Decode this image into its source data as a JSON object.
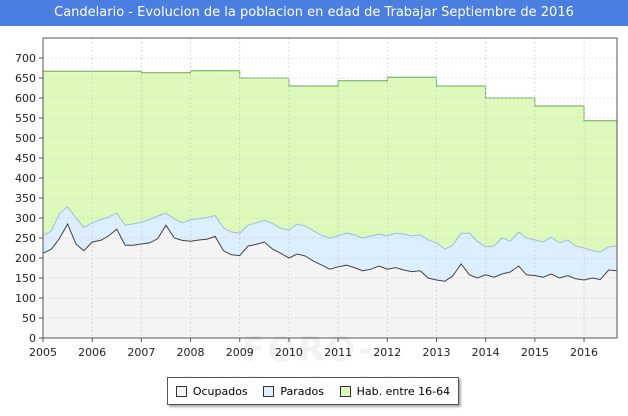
{
  "title": "Candelario - Evolucion de la poblacion en edad de Trabajar Septiembre de 2016",
  "watermark": "FORO-CIUDAD.COM",
  "chart_data": {
    "type": "area",
    "title": "Candelario - Evolucion de la poblacion en edad de Trabajar Septiembre de 2016",
    "xlabel": "",
    "ylabel": "",
    "xlim": [
      2005,
      2016.67
    ],
    "ylim": [
      0,
      750
    ],
    "y_ticks": [
      0,
      50,
      100,
      150,
      200,
      250,
      300,
      350,
      400,
      450,
      500,
      550,
      600,
      650,
      700
    ],
    "x_ticks": [
      "2005",
      "2006",
      "2007",
      "2008",
      "2009",
      "2010",
      "2011",
      "2012",
      "2013",
      "2014",
      "2015",
      "2016"
    ],
    "grid": true,
    "legend_position": "bottom",
    "colors": {
      "ocupados": "#f4f4f4",
      "parados": "#ddeeff",
      "hab": "#ddfaba",
      "hab_line": "#66aa55",
      "line": "#444444"
    },
    "series": [
      {
        "name": "Hab. entre 16-64",
        "type": "step",
        "x": [
          2005,
          2007,
          2008,
          2009,
          2010,
          2011,
          2012,
          2013,
          2014,
          2015,
          2016,
          2016.67
        ],
        "values": [
          667,
          663,
          668,
          650,
          630,
          643,
          652,
          630,
          600,
          580,
          543,
          543
        ]
      },
      {
        "name": "Parados",
        "x": [
          2005.0,
          2005.17,
          2005.33,
          2005.5,
          2005.67,
          2005.83,
          2006.0,
          2006.17,
          2006.33,
          2006.5,
          2006.67,
          2006.83,
          2007.0,
          2007.17,
          2007.33,
          2007.5,
          2007.67,
          2007.83,
          2008.0,
          2008.17,
          2008.33,
          2008.5,
          2008.67,
          2008.83,
          2009.0,
          2009.17,
          2009.33,
          2009.5,
          2009.67,
          2009.83,
          2010.0,
          2010.17,
          2010.33,
          2010.5,
          2010.67,
          2010.83,
          2011.0,
          2011.17,
          2011.33,
          2011.5,
          2011.67,
          2011.83,
          2012.0,
          2012.17,
          2012.33,
          2012.5,
          2012.67,
          2012.83,
          2013.0,
          2013.17,
          2013.33,
          2013.5,
          2013.67,
          2013.83,
          2014.0,
          2014.17,
          2014.33,
          2014.5,
          2014.67,
          2014.83,
          2015.0,
          2015.17,
          2015.33,
          2015.5,
          2015.67,
          2015.83,
          2016.0,
          2016.17,
          2016.33,
          2016.5,
          2016.67
        ],
        "values": [
          255,
          268,
          310,
          328,
          300,
          276,
          288,
          296,
          302,
          312,
          282,
          285,
          290,
          296,
          305,
          312,
          298,
          288,
          296,
          298,
          301,
          306,
          275,
          265,
          262,
          282,
          288,
          294,
          286,
          274,
          270,
          285,
          280,
          268,
          256,
          250,
          255,
          262,
          258,
          250,
          255,
          260,
          255,
          262,
          260,
          255,
          258,
          245,
          238,
          222,
          232,
          262,
          262,
          242,
          228,
          230,
          250,
          242,
          265,
          250,
          245,
          240,
          252,
          238,
          245,
          230,
          225,
          218,
          215,
          228,
          230
        ]
      },
      {
        "name": "Ocupados",
        "x": [
          2005.0,
          2005.17,
          2005.33,
          2005.5,
          2005.67,
          2005.83,
          2006.0,
          2006.17,
          2006.33,
          2006.5,
          2006.67,
          2006.83,
          2007.0,
          2007.17,
          2007.33,
          2007.5,
          2007.67,
          2007.83,
          2008.0,
          2008.17,
          2008.33,
          2008.5,
          2008.67,
          2008.83,
          2009.0,
          2009.17,
          2009.33,
          2009.5,
          2009.67,
          2009.83,
          2010.0,
          2010.17,
          2010.33,
          2010.5,
          2010.67,
          2010.83,
          2011.0,
          2011.17,
          2011.33,
          2011.5,
          2011.67,
          2011.83,
          2012.0,
          2012.17,
          2012.33,
          2012.5,
          2012.67,
          2012.83,
          2013.0,
          2013.17,
          2013.33,
          2013.5,
          2013.67,
          2013.83,
          2014.0,
          2014.17,
          2014.33,
          2014.5,
          2014.67,
          2014.83,
          2015.0,
          2015.17,
          2015.33,
          2015.5,
          2015.67,
          2015.83,
          2016.0,
          2016.17,
          2016.33,
          2016.5,
          2016.67
        ],
        "values": [
          212,
          222,
          248,
          285,
          235,
          218,
          240,
          244,
          255,
          272,
          232,
          232,
          235,
          238,
          248,
          282,
          250,
          244,
          242,
          245,
          247,
          254,
          218,
          208,
          206,
          230,
          234,
          240,
          222,
          212,
          200,
          210,
          205,
          192,
          182,
          172,
          178,
          182,
          176,
          168,
          172,
          180,
          172,
          176,
          170,
          166,
          168,
          150,
          145,
          142,
          155,
          185,
          158,
          150,
          158,
          152,
          160,
          165,
          180,
          158,
          156,
          152,
          160,
          150,
          156,
          148,
          145,
          150,
          146,
          170,
          168
        ]
      }
    ]
  },
  "legend": {
    "ocupados": "Ocupados",
    "parados": "Parados",
    "hab": "Hab. entre 16-64"
  }
}
